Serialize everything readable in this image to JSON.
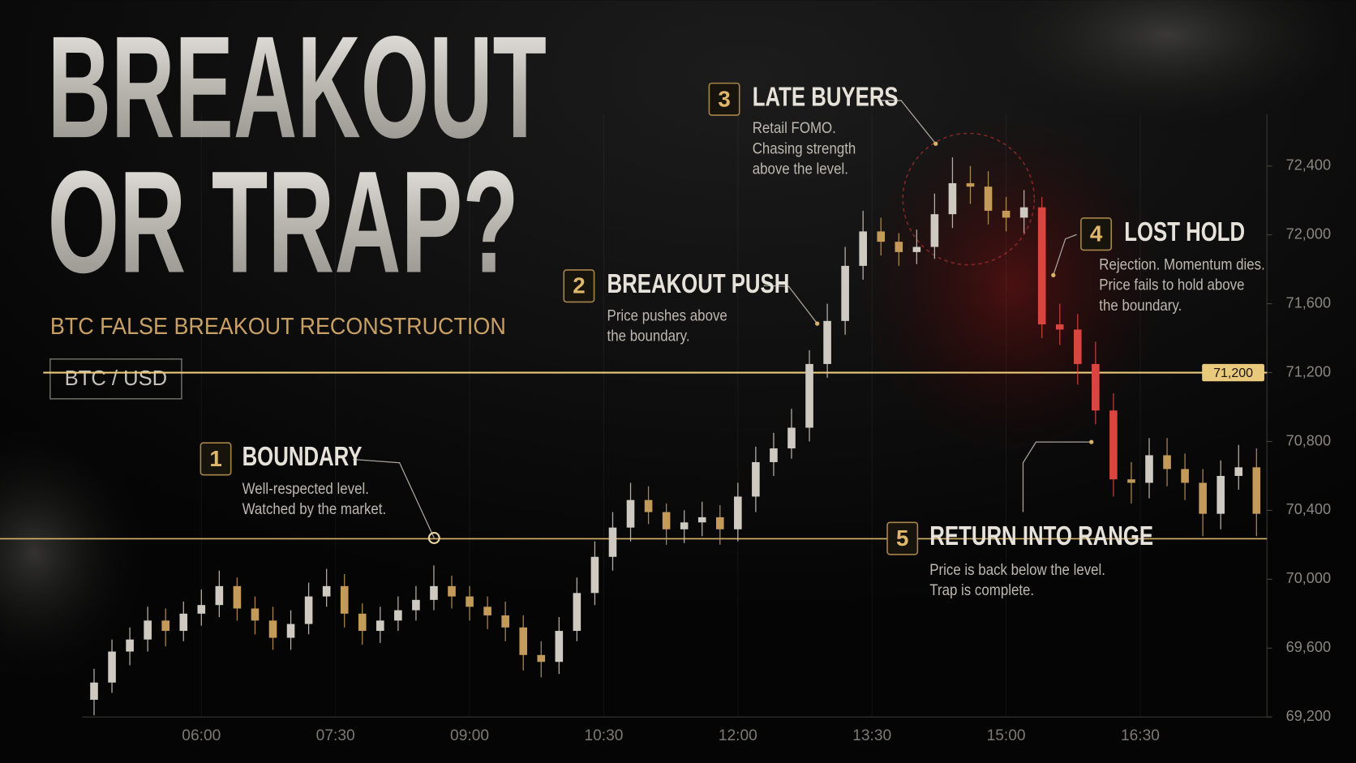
{
  "chart_data": {
    "type": "candlestick",
    "title": [
      "BREAKOUT",
      "OR TRAP?"
    ],
    "subtitle": "BTC FALSE BREAKOUT RECONSTRUCTION",
    "symbol": "BTC / USD",
    "x": [
      288,
      300,
      312,
      324,
      336,
      348,
      360,
      372,
      384,
      396,
      408,
      420,
      432,
      444,
      456,
      468,
      480,
      492,
      504,
      516,
      528,
      540,
      552,
      564,
      576,
      588,
      600,
      612,
      624,
      636,
      648,
      660,
      672,
      684,
      696,
      708,
      720,
      732,
      744,
      756,
      768,
      780,
      792,
      804,
      816,
      828,
      840,
      852,
      864,
      876,
      888,
      900,
      912,
      924,
      936,
      948,
      960,
      972,
      984,
      996,
      1008,
      1020,
      1032,
      1044,
      1056,
      1068
    ],
    "open": [
      69300,
      69400,
      69580,
      69650,
      69760,
      69700,
      69800,
      69850,
      69960,
      69830,
      69760,
      69660,
      69740,
      69900,
      69960,
      69800,
      69700,
      69760,
      69820,
      69880,
      69960,
      69900,
      69840,
      69790,
      69720,
      69560,
      69520,
      69700,
      69920,
      70130,
      70300,
      70460,
      70390,
      70290,
      70330,
      70360,
      70290,
      70480,
      70680,
      70760,
      70880,
      71250,
      71500,
      71820,
      72020,
      71960,
      71900,
      71930,
      72120,
      72300,
      72280,
      72140,
      72100,
      72160,
      71480,
      71450,
      71250,
      70980,
      70580,
      70560,
      70720,
      70640,
      70560,
      70380,
      70600,
      70650
    ],
    "high": [
      69480,
      69650,
      69720,
      69840,
      69830,
      69870,
      69940,
      70050,
      70010,
      69900,
      69840,
      69820,
      69980,
      70060,
      70030,
      69860,
      69840,
      69900,
      69960,
      70080,
      70020,
      69960,
      69900,
      69870,
      69790,
      69640,
      69780,
      70010,
      70220,
      70390,
      70560,
      70540,
      70440,
      70400,
      70450,
      70430,
      70560,
      70770,
      70850,
      70990,
      71330,
      71600,
      71930,
      72140,
      72100,
      72010,
      72030,
      72240,
      72450,
      72400,
      72370,
      72220,
      72260,
      72220,
      71600,
      71540,
      71380,
      71080,
      70680,
      70820,
      70820,
      70730,
      70640,
      70690,
      70780,
      70760
    ],
    "low": [
      69210,
      69340,
      69500,
      69580,
      69610,
      69640,
      69730,
      69780,
      69760,
      69680,
      69590,
      69590,
      69680,
      69840,
      69720,
      69620,
      69630,
      69700,
      69760,
      69820,
      69830,
      69760,
      69710,
      69640,
      69470,
      69430,
      69450,
      69640,
      69850,
      70050,
      70220,
      70320,
      70200,
      70210,
      70250,
      70200,
      70220,
      70390,
      70600,
      70700,
      70800,
      71170,
      71420,
      71740,
      71880,
      71820,
      71830,
      71860,
      72040,
      72180,
      72060,
      72020,
      72010,
      71400,
      71360,
      71130,
      70900,
      70480,
      70440,
      70470,
      70540,
      70460,
      70250,
      70290,
      70520,
      70250
    ],
    "close": [
      69400,
      69580,
      69650,
      69760,
      69700,
      69800,
      69850,
      69960,
      69830,
      69760,
      69660,
      69740,
      69900,
      69960,
      69800,
      69700,
      69760,
      69820,
      69880,
      69960,
      69900,
      69840,
      69790,
      69720,
      69560,
      69520,
      69700,
      69920,
      70130,
      70300,
      70460,
      70390,
      70290,
      70330,
      70360,
      70290,
      70480,
      70680,
      70760,
      70880,
      71250,
      71500,
      71820,
      72020,
      71960,
      71900,
      71930,
      72120,
      72300,
      72280,
      72140,
      72100,
      72160,
      71480,
      71450,
      71250,
      70980,
      70580,
      70560,
      70720,
      70640,
      70560,
      70380,
      70600,
      70650,
      70380
    ],
    "palette": {
      "silver": "#cfcac1",
      "gold": "#c49a5a",
      "red": "#d9463f"
    },
    "candle_colors": [
      "silver",
      "silver",
      "silver",
      "silver",
      "gold",
      "silver",
      "silver",
      "silver",
      "gold",
      "gold",
      "gold",
      "silver",
      "silver",
      "silver",
      "gold",
      "gold",
      "silver",
      "silver",
      "silver",
      "silver",
      "gold",
      "gold",
      "gold",
      "gold",
      "gold",
      "gold",
      "silver",
      "silver",
      "silver",
      "silver",
      "silver",
      "gold",
      "gold",
      "silver",
      "silver",
      "gold",
      "silver",
      "silver",
      "silver",
      "silver",
      "silver",
      "silver",
      "silver",
      "silver",
      "gold",
      "gold",
      "silver",
      "silver",
      "silver",
      "gold",
      "gold",
      "gold",
      "silver",
      "red",
      "red",
      "red",
      "red",
      "red",
      "gold",
      "silver",
      "gold",
      "gold",
      "gold",
      "silver",
      "silver",
      "gold"
    ],
    "xlim": [
      280,
      1075
    ],
    "xticks": [
      {
        "value": 360,
        "label": "06:00"
      },
      {
        "value": 450,
        "label": "07:30"
      },
      {
        "value": 540,
        "label": "09:00"
      },
      {
        "value": 630,
        "label": "10:30"
      },
      {
        "value": 720,
        "label": "12:00"
      },
      {
        "value": 810,
        "label": "13:30"
      },
      {
        "value": 900,
        "label": "15:00"
      },
      {
        "value": 990,
        "label": "16:30"
      }
    ],
    "ylim": [
      69200,
      72700
    ],
    "yticks": [
      {
        "value": 69200,
        "label": "69,200"
      },
      {
        "value": 69600,
        "label": "69,600"
      },
      {
        "value": 70000,
        "label": "70,000"
      },
      {
        "value": 70400,
        "label": "70,400"
      },
      {
        "value": 70800,
        "label": "70,800"
      },
      {
        "value": 71200,
        "label": "71,200"
      },
      {
        "value": 71600,
        "label": "71,600"
      },
      {
        "value": 72000,
        "label": "72,000"
      },
      {
        "value": 72400,
        "label": "72,400"
      }
    ],
    "grid": true,
    "level": {
      "value": 71200,
      "label": "71,200",
      "color": "#e9c97c"
    },
    "boundary_level": 70235,
    "annotations": [
      {
        "number": 1,
        "title": "BOUNDARY",
        "description": [
          "Well-respected level.",
          "Watched by the market."
        ]
      },
      {
        "number": 2,
        "title": "BREAKOUT PUSH",
        "description": [
          "Price pushes above",
          "the boundary."
        ]
      },
      {
        "number": 3,
        "title": "LATE BUYERS",
        "description": [
          "Retail FOMO.",
          "Chasing strength",
          "above the level."
        ]
      },
      {
        "number": 4,
        "title": "LOST HOLD",
        "description": [
          "Rejection. Momentum dies.",
          "Price fails to hold above",
          "the boundary."
        ]
      },
      {
        "number": 5,
        "title": "RETURN INTO RANGE",
        "description": [
          "Price is back below the level.",
          "Trap is complete."
        ]
      }
    ]
  }
}
